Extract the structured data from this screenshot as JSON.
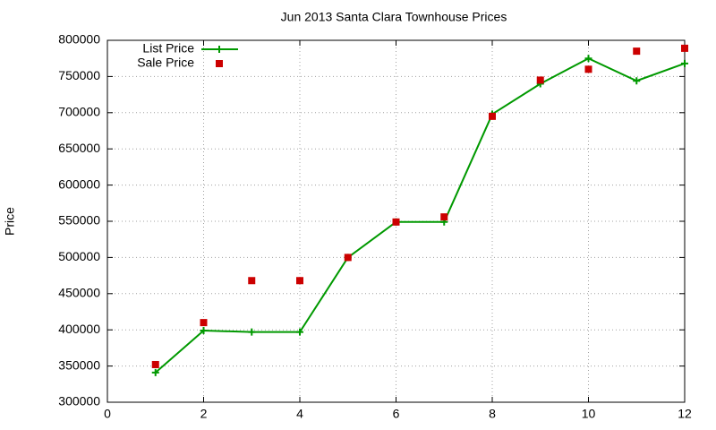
{
  "chart_data": {
    "type": "line",
    "title": "Jun 2013 Santa Clara Townhouse Prices",
    "y_label": "Price",
    "x": [
      1,
      2,
      3,
      4,
      5,
      6,
      7,
      8,
      9,
      10,
      11,
      12
    ],
    "series": [
      {
        "name": "List Price",
        "color": "#009900",
        "line": true,
        "marker": "plus",
        "values": [
          341000,
          399000,
          397000,
          397000,
          500000,
          549000,
          549000,
          698000,
          740000,
          775000,
          744000,
          768000
        ]
      },
      {
        "name": "Sale Price",
        "color": "#cc0000",
        "line": false,
        "marker": "square",
        "values": [
          352000,
          410000,
          468000,
          468000,
          500000,
          549000,
          556000,
          695000,
          745000,
          760000,
          785000,
          789000
        ]
      }
    ],
    "xlim": [
      0,
      12
    ],
    "xticks": [
      0,
      2,
      4,
      6,
      8,
      10,
      12
    ],
    "ylim": [
      300000,
      800000
    ],
    "yticks": [
      300000,
      350000,
      400000,
      450000,
      500000,
      550000,
      600000,
      650000,
      700000,
      750000,
      800000
    ],
    "grid": true,
    "legend": "top-left"
  }
}
